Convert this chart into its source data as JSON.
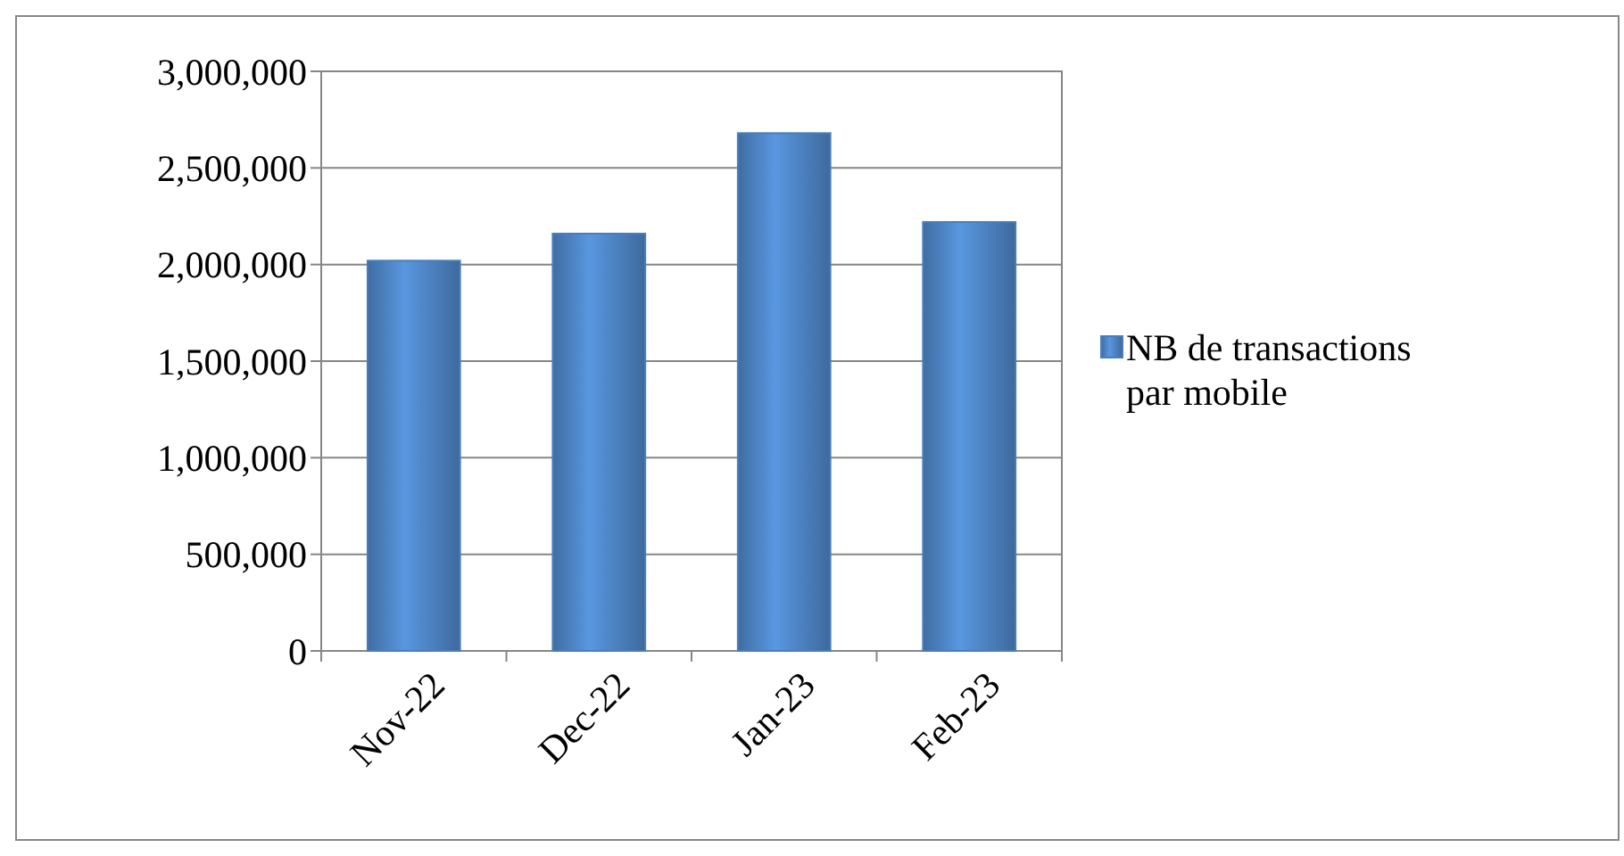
{
  "chart_data": {
    "type": "bar",
    "categories": [
      "Nov-22",
      "Dec-22",
      "Jan-23",
      "Feb-23"
    ],
    "series": [
      {
        "name": "NB de transactions par mobile",
        "color": "#4a7ebb",
        "values": [
          2020000,
          2160000,
          2680000,
          2220000
        ]
      }
    ],
    "ylim": [
      0,
      3000000
    ],
    "yticks": [
      {
        "value": 0,
        "label": "0"
      },
      {
        "value": 500000,
        "label": "500,000"
      },
      {
        "value": 1000000,
        "label": "1,000,000"
      },
      {
        "value": 1500000,
        "label": "1,500,000"
      },
      {
        "value": 2000000,
        "label": "2,000,000"
      },
      {
        "value": 2500000,
        "label": "2,500,000"
      },
      {
        "value": 3000000,
        "label": "3,000,000"
      }
    ],
    "grid": "y",
    "legend": "right"
  }
}
